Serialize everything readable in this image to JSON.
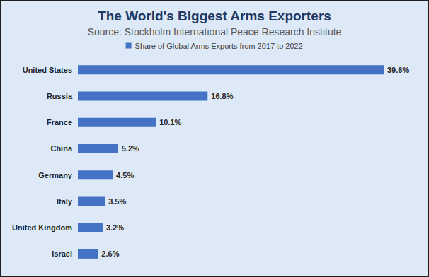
{
  "chart_data": {
    "type": "bar",
    "orientation": "horizontal",
    "title": "The World's Biggest Arms Exporters",
    "subtitle": "Source: Stockholm International Peace Research Institute",
    "categories": [
      "United States",
      "Russia",
      "France",
      "China",
      "Germany",
      "Italy",
      "United Kingdom",
      "Israel"
    ],
    "series": [
      {
        "name": "Share of Global Arms Exports from 2017 to 2022",
        "color": "#4472c4",
        "values": [
          39.6,
          16.8,
          10.1,
          5.2,
          4.5,
          3.5,
          3.2,
          2.6
        ],
        "value_labels": [
          "39.6%",
          "16.8%",
          "10.1%",
          "5.2%",
          "4.5%",
          "3.5%",
          "3.2%",
          "2.6%"
        ]
      }
    ],
    "data_labels": true,
    "legend": "top",
    "tick_labels": "y",
    "grid": false
  }
}
